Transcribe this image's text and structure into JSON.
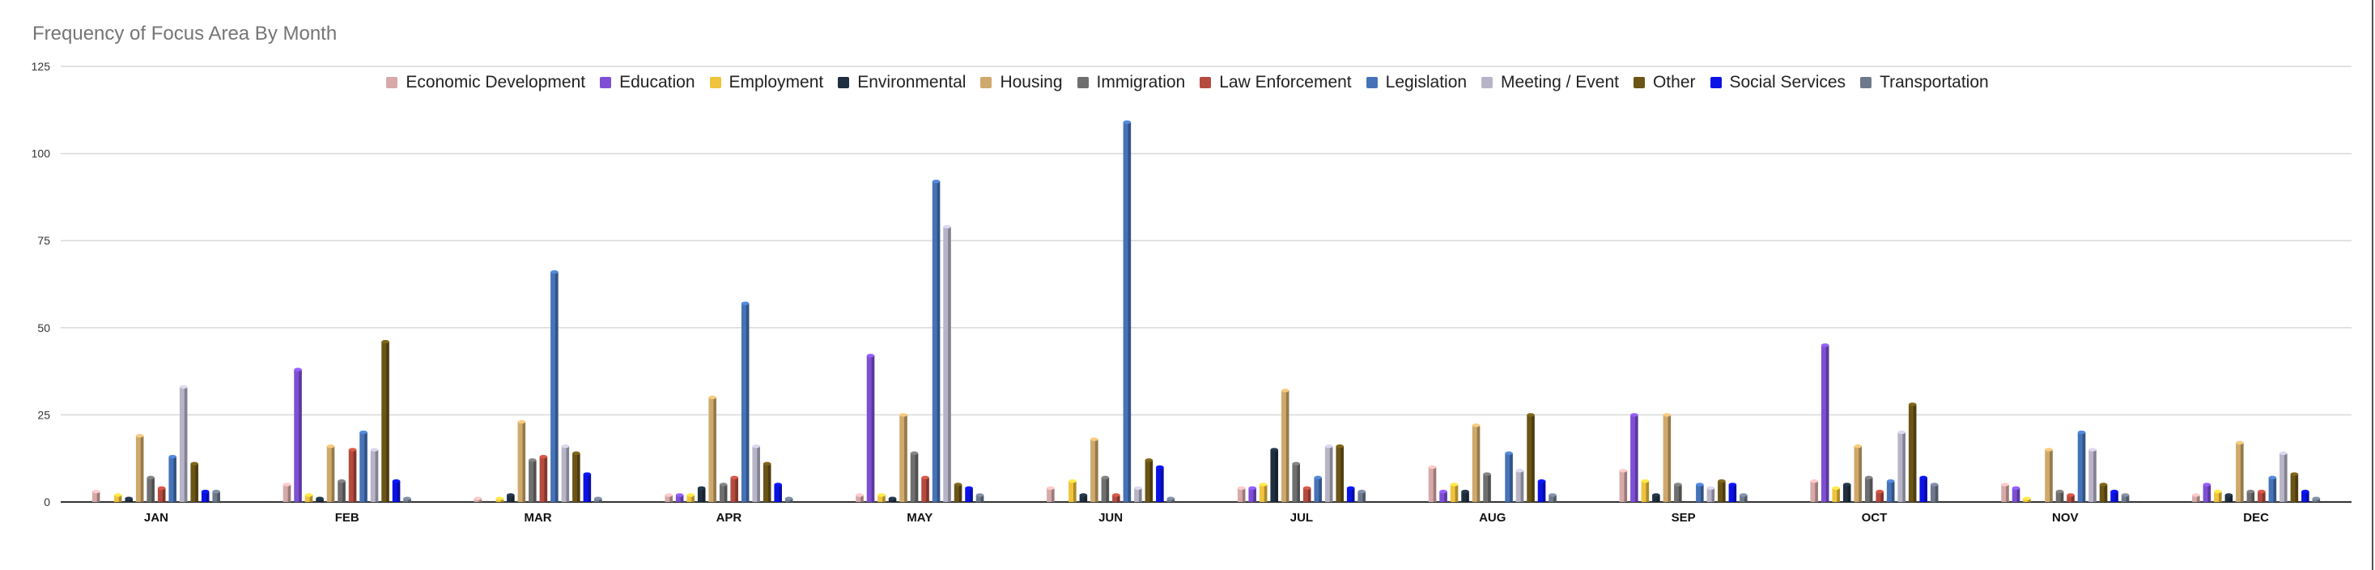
{
  "title": "Frequency of Focus Area By Month",
  "chart_data": {
    "type": "bar",
    "title": "Frequency of Focus Area By Month",
    "xlabel": "",
    "ylabel": "",
    "ylim": [
      0,
      125
    ],
    "yticks": [
      0,
      25,
      50,
      75,
      100,
      125
    ],
    "grid": true,
    "legend_position": "top",
    "categories": [
      "JAN",
      "FEB",
      "MAR",
      "APR",
      "MAY",
      "JUN",
      "JUL",
      "AUG",
      "SEP",
      "OCT",
      "NOV",
      "DEC"
    ],
    "series": [
      {
        "name": "Economic Development",
        "color": "#d8a9a9",
        "values": [
          3,
          5,
          1,
          2,
          2,
          4,
          4,
          10,
          9,
          6,
          5,
          2
        ]
      },
      {
        "name": "Education",
        "color": "#7e4fd6",
        "values": [
          0,
          38,
          0,
          2,
          42,
          0,
          4,
          3,
          25,
          45,
          4,
          5
        ]
      },
      {
        "name": "Employment",
        "color": "#f0c33c",
        "values": [
          2,
          2,
          1,
          2,
          2,
          6,
          5,
          5,
          6,
          4,
          1,
          3
        ]
      },
      {
        "name": "Environmental",
        "color": "#1f2f3f",
        "values": [
          1,
          1,
          2,
          4,
          1,
          2,
          15,
          3,
          2,
          5,
          0,
          2
        ]
      },
      {
        "name": "Housing",
        "color": "#cfa96b",
        "values": [
          19,
          16,
          23,
          30,
          25,
          18,
          32,
          22,
          25,
          16,
          15,
          17
        ]
      },
      {
        "name": "Immigration",
        "color": "#6f6f6f",
        "values": [
          7,
          6,
          12,
          5,
          14,
          7,
          11,
          8,
          5,
          7,
          3,
          3
        ]
      },
      {
        "name": "Law Enforcement",
        "color": "#b54a3e",
        "values": [
          4,
          15,
          13,
          7,
          7,
          2,
          4,
          0,
          0,
          3,
          2,
          3
        ]
      },
      {
        "name": "Legislation",
        "color": "#4673b8",
        "values": [
          13,
          20,
          66,
          57,
          92,
          109,
          7,
          14,
          5,
          6,
          20,
          7
        ]
      },
      {
        "name": "Meeting / Event",
        "color": "#b8b4c8",
        "values": [
          33,
          15,
          16,
          16,
          79,
          4,
          16,
          9,
          4,
          20,
          15,
          14
        ]
      },
      {
        "name": "Other",
        "color": "#6b5516",
        "values": [
          11,
          46,
          14,
          11,
          5,
          12,
          16,
          25,
          6,
          28,
          5,
          8
        ]
      },
      {
        "name": "Social Services",
        "color": "#0a12e6",
        "values": [
          3,
          6,
          8,
          5,
          4,
          10,
          4,
          6,
          5,
          7,
          3,
          3
        ]
      },
      {
        "name": "Transportation",
        "color": "#6e7a8c",
        "values": [
          3,
          1,
          1,
          1,
          2,
          1,
          3,
          2,
          2,
          5,
          2,
          1
        ]
      }
    ]
  }
}
